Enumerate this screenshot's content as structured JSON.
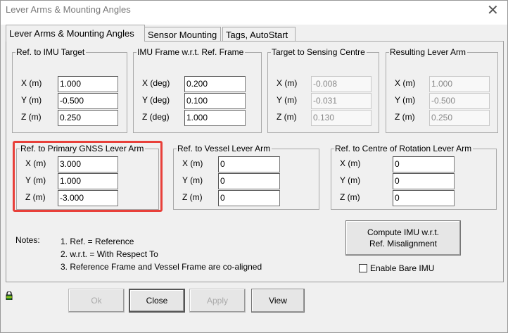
{
  "window": {
    "title": "Lever Arms & Mounting Angles",
    "close": "✕"
  },
  "tabs": [
    {
      "label": "Lever Arms & Mounting Angles",
      "active": true
    },
    {
      "label": "Sensor Mounting"
    },
    {
      "label": "Tags, AutoStart"
    }
  ],
  "groups": [
    {
      "title": "Ref. to IMU Target",
      "rows": [
        {
          "label": "X (m)",
          "value": "1.000"
        },
        {
          "label": "Y (m)",
          "value": "-0.500"
        },
        {
          "label": "Z (m)",
          "value": "0.250"
        }
      ],
      "readonly": false
    },
    {
      "title": "IMU Frame w.r.t. Ref. Frame",
      "rows": [
        {
          "label": "X (deg)",
          "value": "0.200"
        },
        {
          "label": "Y (deg)",
          "value": "0.100"
        },
        {
          "label": "Z (deg)",
          "value": "1.000"
        }
      ],
      "readonly": false
    },
    {
      "title": "Target to Sensing Centre",
      "rows": [
        {
          "label": "X (m)",
          "value": "-0.008"
        },
        {
          "label": "Y (m)",
          "value": "-0.031"
        },
        {
          "label": "Z (m)",
          "value": "0.130"
        }
      ],
      "readonly": true
    },
    {
      "title": "Resulting Lever Arm",
      "rows": [
        {
          "label": "X (m)",
          "value": "1.000"
        },
        {
          "label": "Y (m)",
          "value": "-0.500"
        },
        {
          "label": "Z (m)",
          "value": "0.250"
        }
      ],
      "readonly": true
    },
    {
      "title": "Ref. to Primary GNSS Lever Arm",
      "rows": [
        {
          "label": "X (m)",
          "value": "3.000"
        },
        {
          "label": "Y (m)",
          "value": "1.000"
        },
        {
          "label": "Z (m)",
          "value": "-3.000"
        }
      ],
      "readonly": false,
      "highlighted": true,
      "highlight_color": "#e8403a"
    },
    {
      "title": "Ref. to Vessel Lever Arm",
      "rows": [
        {
          "label": "X (m)",
          "value": "0"
        },
        {
          "label": "Y (m)",
          "value": "0"
        },
        {
          "label": "Z (m)",
          "value": "0"
        }
      ],
      "readonly": false
    },
    {
      "title": "Ref. to Centre of Rotation Lever Arm",
      "rows": [
        {
          "label": "X (m)",
          "value": "0"
        },
        {
          "label": "Y (m)",
          "value": "0"
        },
        {
          "label": "Z (m)",
          "value": "0"
        }
      ],
      "readonly": false
    }
  ],
  "notes": {
    "label": "Notes:",
    "items": [
      "1. Ref. = Reference",
      "2. w.r.t. = With Respect To",
      "3. Reference Frame and Vessel Frame are co-aligned"
    ]
  },
  "compute_button": {
    "line1": "Compute IMU w.r.t.",
    "line2": "Ref. Misalignment"
  },
  "bare_imu": {
    "label": "Enable Bare IMU",
    "checked": false
  },
  "lock_icon": "lock-icon",
  "buttons": {
    "ok": "Ok",
    "close": "Close",
    "apply": "Apply",
    "view": "View"
  }
}
